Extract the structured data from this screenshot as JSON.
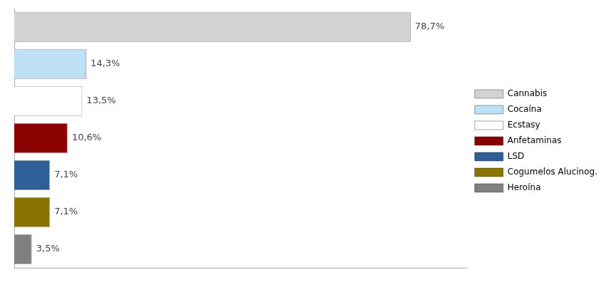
{
  "chart_data": {
    "type": "bar",
    "orientation": "horizontal",
    "categories": [
      "Cannabis",
      "Cocaína",
      "Ecstasy",
      "Anfetaminas",
      "LSD",
      "Cogumelos Alucinog.",
      "Heroína"
    ],
    "values": [
      78.7,
      14.3,
      13.5,
      10.6,
      7.1,
      7.1,
      3.5
    ],
    "value_labels": [
      "78,7%",
      "14,3%",
      "13,5%",
      "10,6%",
      "7,1%",
      "7,1%",
      "3,5%"
    ],
    "data_labels": true,
    "colors": [
      "#d3d3d3",
      "#bde0f5",
      "#ffffff",
      "#8b0000",
      "#2e6097",
      "#8b7300",
      "#808080"
    ],
    "xlim": [
      0,
      90
    ],
    "tick_labels": false,
    "grid": false,
    "legend": "right"
  }
}
